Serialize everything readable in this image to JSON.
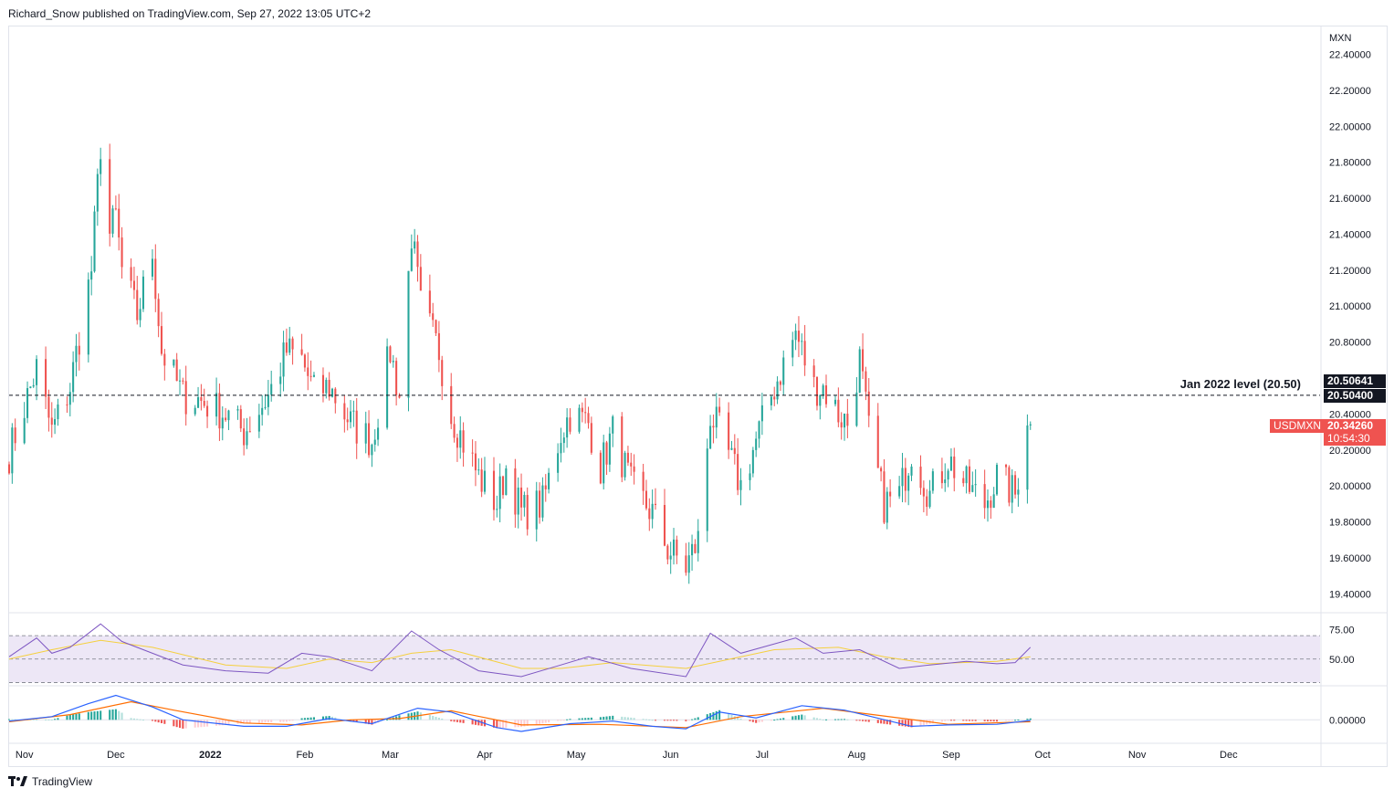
{
  "header": {
    "publisher": "Richard_Snow published on TradingView.com, Sep 27, 2022 13:05 UTC+2"
  },
  "footer": {
    "logo_text": "TradingView",
    "logo_icon": "tradingview-logo-icon"
  },
  "colors": {
    "up": "#26a69a",
    "down": "#ef5350",
    "rsi": "#7e57c2",
    "rsi_ma": "#f5d03f",
    "macd": "#2962ff",
    "signal": "#ff6d00",
    "hist_up": "#26a69a",
    "hist_down": "#ef5350",
    "rsi_band": "#ede7f6"
  },
  "price_axis": {
    "currency": "MXN",
    "ticks": [
      "22.40000",
      "22.20000",
      "22.00000",
      "21.80000",
      "21.60000",
      "21.40000",
      "21.20000",
      "21.00000",
      "20.80000",
      "20.40000",
      "20.20000",
      "20.00000",
      "19.80000",
      "19.60000",
      "19.40000"
    ]
  },
  "rsi_axis": {
    "ticks": [
      "75.00",
      "50.00"
    ]
  },
  "macd_axis": {
    "ticks": [
      "0.00000"
    ]
  },
  "time_axis": {
    "labels": [
      "Nov",
      "Dec",
      "2022",
      "Feb",
      "Mar",
      "Apr",
      "May",
      "Jun",
      "Jul",
      "Aug",
      "Sep",
      "Oct",
      "Nov",
      "Dec"
    ]
  },
  "annotation": {
    "text": "Jan 2022 level (20.50)",
    "level": 20.504
  },
  "price_labels": {
    "upper": "20.50641",
    "level": "20.50400",
    "symbol": "USDMXN",
    "last": "20.34260",
    "countdown": "10:54:30"
  },
  "chart_data": [
    {
      "type": "candlestick",
      "symbol": "USDMXN",
      "timeframe": "1D",
      "ylim": [
        19.3,
        22.55
      ],
      "x_range": [
        "2021-10-27",
        "2022-12-31"
      ],
      "horizontal_line": 20.504,
      "anchors": [
        [
          "2021-10-27",
          20.18
        ],
        [
          "2021-11-05",
          20.65
        ],
        [
          "2021-11-10",
          20.3
        ],
        [
          "2021-11-16",
          20.55
        ],
        [
          "2021-11-23",
          21.2
        ],
        [
          "2021-11-26",
          21.9
        ],
        [
          "2021-11-29",
          21.4
        ],
        [
          "2021-12-01",
          21.5
        ],
        [
          "2021-12-03",
          21.2
        ],
        [
          "2021-12-08",
          20.95
        ],
        [
          "2021-12-13",
          21.3
        ],
        [
          "2021-12-16",
          20.75
        ],
        [
          "2021-12-23",
          20.5
        ],
        [
          "2021-12-28",
          20.48
        ],
        [
          "2022-01-06",
          20.4
        ],
        [
          "2022-01-12",
          20.3
        ],
        [
          "2022-01-20",
          20.5
        ],
        [
          "2022-01-26",
          20.75
        ],
        [
          "2022-01-31",
          20.7
        ],
        [
          "2022-02-04",
          20.52
        ],
        [
          "2022-02-09",
          20.55
        ],
        [
          "2022-02-16",
          20.35
        ],
        [
          "2022-02-23",
          20.25
        ],
        [
          "2022-03-01",
          20.75
        ],
        [
          "2022-03-04",
          20.5
        ],
        [
          "2022-03-08",
          21.4
        ],
        [
          "2022-03-11",
          21.0
        ],
        [
          "2022-03-17",
          20.75
        ],
        [
          "2022-03-21",
          20.4
        ],
        [
          "2022-03-30",
          20.05
        ],
        [
          "2022-04-05",
          19.9
        ],
        [
          "2022-04-08",
          20.1
        ],
        [
          "2022-04-13",
          19.85
        ],
        [
          "2022-04-20",
          19.9
        ],
        [
          "2022-04-26",
          20.3
        ],
        [
          "2022-04-29",
          20.4
        ],
        [
          "2022-05-05",
          20.35
        ],
        [
          "2022-05-09",
          20.1
        ],
        [
          "2022-05-13",
          20.3
        ],
        [
          "2022-05-19",
          20.0
        ],
        [
          "2022-05-26",
          19.85
        ],
        [
          "2022-05-31",
          19.65
        ],
        [
          "2022-06-06",
          19.55
        ],
        [
          "2022-06-10",
          19.7
        ],
        [
          "2022-06-14",
          20.4
        ],
        [
          "2022-06-17",
          20.3
        ],
        [
          "2022-06-24",
          20.0
        ],
        [
          "2022-06-29",
          20.25
        ],
        [
          "2022-07-05",
          20.55
        ],
        [
          "2022-07-12",
          20.85
        ],
        [
          "2022-07-18",
          20.55
        ],
        [
          "2022-07-21",
          20.55
        ],
        [
          "2022-07-26",
          20.4
        ],
        [
          "2022-07-29",
          20.35
        ],
        [
          "2022-08-02",
          20.7
        ],
        [
          "2022-08-05",
          20.3
        ],
        [
          "2022-08-10",
          19.9
        ],
        [
          "2022-08-15",
          19.95
        ],
        [
          "2022-08-19",
          20.2
        ],
        [
          "2022-08-25",
          19.95
        ],
        [
          "2022-08-31",
          20.15
        ],
        [
          "2022-09-06",
          20.0
        ],
        [
          "2022-09-12",
          19.9
        ],
        [
          "2022-09-16",
          20.05
        ],
        [
          "2022-09-22",
          19.95
        ],
        [
          "2022-09-26",
          20.4
        ],
        [
          "2022-09-27",
          20.3426
        ]
      ],
      "last_close": 20.3426
    },
    {
      "type": "line",
      "name": "RSI",
      "ylim": [
        28,
        88
      ],
      "bands": [
        70,
        50,
        30
      ],
      "series": [
        {
          "name": "RSI",
          "points": [
            [
              "2021-10-27",
              52
            ],
            [
              "2021-11-05",
              68
            ],
            [
              "2021-11-10",
              55
            ],
            [
              "2021-11-16",
              60
            ],
            [
              "2021-11-26",
              80
            ],
            [
              "2021-12-03",
              65
            ],
            [
              "2021-12-13",
              55
            ],
            [
              "2021-12-23",
              45
            ],
            [
              "2022-01-06",
              40
            ],
            [
              "2022-01-20",
              38
            ],
            [
              "2022-01-31",
              55
            ],
            [
              "2022-02-09",
              52
            ],
            [
              "2022-02-23",
              40
            ],
            [
              "2022-03-08",
              74
            ],
            [
              "2022-03-17",
              58
            ],
            [
              "2022-03-30",
              40
            ],
            [
              "2022-04-13",
              35
            ],
            [
              "2022-04-26",
              45
            ],
            [
              "2022-05-05",
              52
            ],
            [
              "2022-05-19",
              42
            ],
            [
              "2022-06-06",
              35
            ],
            [
              "2022-06-14",
              72
            ],
            [
              "2022-06-24",
              55
            ],
            [
              "2022-07-12",
              68
            ],
            [
              "2022-07-21",
              55
            ],
            [
              "2022-08-02",
              58
            ],
            [
              "2022-08-15",
              42
            ],
            [
              "2022-08-25",
              45
            ],
            [
              "2022-09-06",
              48
            ],
            [
              "2022-09-16",
              46
            ],
            [
              "2022-09-22",
              47
            ],
            [
              "2022-09-27",
              60
            ]
          ]
        },
        {
          "name": "RSI MA",
          "points": [
            [
              "2021-10-27",
              50
            ],
            [
              "2021-11-10",
              58
            ],
            [
              "2021-11-26",
              66
            ],
            [
              "2021-12-13",
              60
            ],
            [
              "2022-01-06",
              45
            ],
            [
              "2022-01-26",
              42
            ],
            [
              "2022-02-09",
              50
            ],
            [
              "2022-02-23",
              47
            ],
            [
              "2022-03-08",
              55
            ],
            [
              "2022-03-21",
              58
            ],
            [
              "2022-04-13",
              42
            ],
            [
              "2022-04-26",
              42
            ],
            [
              "2022-05-13",
              47
            ],
            [
              "2022-06-06",
              42
            ],
            [
              "2022-06-17",
              48
            ],
            [
              "2022-07-05",
              58
            ],
            [
              "2022-07-26",
              60
            ],
            [
              "2022-08-10",
              52
            ],
            [
              "2022-08-25",
              46
            ],
            [
              "2022-09-16",
              48
            ],
            [
              "2022-09-27",
              52
            ]
          ]
        }
      ]
    },
    {
      "type": "bar",
      "name": "MACD",
      "ylim": [
        -0.35,
        0.5
      ],
      "series": [
        {
          "name": "MACD",
          "points": [
            [
              "2021-10-27",
              -0.02
            ],
            [
              "2021-11-10",
              0.05
            ],
            [
              "2021-11-22",
              0.25
            ],
            [
              "2021-12-01",
              0.38
            ],
            [
              "2021-12-13",
              0.2
            ],
            [
              "2021-12-23",
              0.0
            ],
            [
              "2022-01-12",
              -0.1
            ],
            [
              "2022-01-26",
              -0.1
            ],
            [
              "2022-02-09",
              0.02
            ],
            [
              "2022-02-23",
              -0.06
            ],
            [
              "2022-03-10",
              0.18
            ],
            [
              "2022-03-21",
              0.12
            ],
            [
              "2022-04-05",
              -0.12
            ],
            [
              "2022-04-13",
              -0.18
            ],
            [
              "2022-04-29",
              -0.06
            ],
            [
              "2022-05-13",
              -0.02
            ],
            [
              "2022-05-26",
              -0.1
            ],
            [
              "2022-06-06",
              -0.14
            ],
            [
              "2022-06-17",
              0.12
            ],
            [
              "2022-06-29",
              0.03
            ],
            [
              "2022-07-14",
              0.22
            ],
            [
              "2022-07-28",
              0.15
            ],
            [
              "2022-08-05",
              0.06
            ],
            [
              "2022-08-19",
              -0.1
            ],
            [
              "2022-08-31",
              -0.08
            ],
            [
              "2022-09-16",
              -0.07
            ],
            [
              "2022-09-27",
              -0.01
            ]
          ]
        },
        {
          "name": "Signal",
          "points": [
            [
              "2021-10-27",
              -0.03
            ],
            [
              "2021-11-16",
              0.08
            ],
            [
              "2021-12-06",
              0.28
            ],
            [
              "2021-12-20",
              0.15
            ],
            [
              "2022-01-12",
              -0.05
            ],
            [
              "2022-01-31",
              -0.08
            ],
            [
              "2022-02-16",
              0.0
            ],
            [
              "2022-03-04",
              0.02
            ],
            [
              "2022-03-21",
              0.14
            ],
            [
              "2022-04-13",
              -0.08
            ],
            [
              "2022-05-09",
              -0.07
            ],
            [
              "2022-06-06",
              -0.12
            ],
            [
              "2022-06-24",
              0.05
            ],
            [
              "2022-07-21",
              0.18
            ],
            [
              "2022-08-10",
              0.06
            ],
            [
              "2022-08-31",
              -0.07
            ],
            [
              "2022-09-27",
              -0.03
            ]
          ]
        }
      ]
    }
  ]
}
